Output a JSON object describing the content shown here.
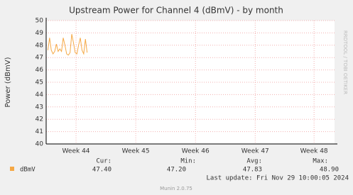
{
  "chart_data": {
    "type": "line",
    "title": "Upstream Power for Channel 4 (dBmV) - by month",
    "y_label": "Power (dBmV)",
    "watermark": "RRDTOOL / TOBI OETIKER",
    "x": [
      0.2,
      0.4,
      0.6,
      0.8,
      1.0,
      1.2,
      1.4,
      1.6,
      1.8,
      2.0,
      2.2,
      2.4,
      2.6,
      2.8,
      3.0,
      3.2,
      3.4,
      3.6,
      3.8,
      4.0,
      4.2,
      4.4,
      4.6,
      4.8
    ],
    "series": [
      {
        "name": "dBmV",
        "color": "#f5a845",
        "values": [
          47.6,
          48.6,
          47.6,
          47.3,
          47.5,
          48.1,
          47.5,
          47.7,
          47.5,
          48.6,
          48.0,
          47.3,
          47.2,
          47.4,
          48.9,
          48.2,
          47.4,
          47.3,
          48.0,
          48.6,
          47.6,
          47.3,
          48.5,
          47.4
        ]
      }
    ],
    "xlim": [
      0,
      33.8
    ],
    "xticks": [
      {
        "value": 3.5,
        "label": "Week 44"
      },
      {
        "value": 10.5,
        "label": "Week 45"
      },
      {
        "value": 17.5,
        "label": "Week 46"
      },
      {
        "value": 24.5,
        "label": "Week 47"
      },
      {
        "value": 31.4,
        "label": "Week 48"
      }
    ],
    "ylim": [
      40,
      50
    ],
    "yticks": [
      40,
      41,
      42,
      43,
      44,
      45,
      46,
      47,
      48,
      49,
      50
    ],
    "grid": true
  },
  "legend": {
    "headers": [
      "Cur:",
      "Min:",
      "Avg:",
      "Max:"
    ],
    "values": [
      "47.40",
      "47.20",
      "47.83",
      "48.90"
    ]
  },
  "last_update": "Last update: Fri Nov 29 10:00:05 2024",
  "footer": "Munin 2.0.75"
}
